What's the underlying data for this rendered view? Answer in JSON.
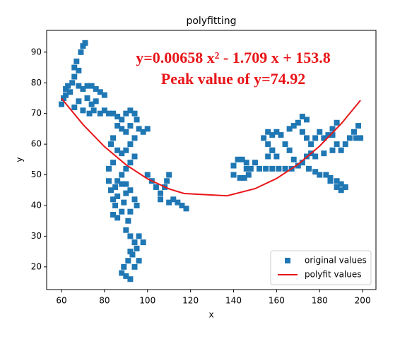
{
  "chart_data": {
    "type": "scatter",
    "title": "polyfitting",
    "x_label": "x",
    "y_label": "y",
    "annotations": [
      "y=0.00658 x² - 1.709 x + 153.8",
      "Peak value of y=74.92"
    ],
    "xlim": [
      53.1,
      206.2
    ],
    "ylim": [
      12.6,
      97.1
    ],
    "xticks": [
      60,
      80,
      100,
      120,
      140,
      160,
      180,
      200
    ],
    "yticks": [
      20,
      30,
      40,
      50,
      60,
      70,
      80,
      90
    ],
    "legend": "lower right",
    "series": [
      {
        "name": "original values",
        "color": "#1f77b4",
        "style": "square",
        "x": [
          60,
          61,
          62,
          62,
          63,
          64,
          65,
          66,
          66,
          67,
          68,
          69,
          70,
          71,
          68,
          70,
          72,
          74,
          76,
          78,
          80,
          76,
          74,
          72,
          68,
          66,
          70,
          73,
          75,
          78,
          80,
          82,
          84,
          86,
          88,
          90,
          92,
          94,
          95,
          92,
          90,
          88,
          86,
          84,
          83,
          86,
          88,
          90,
          92,
          94,
          96,
          98,
          100,
          94,
          92,
          90,
          88,
          86,
          85,
          83,
          84,
          85,
          84,
          86,
          88,
          89,
          90,
          90,
          88,
          86,
          82,
          82,
          84,
          92,
          94,
          95,
          92,
          91,
          90,
          92,
          94,
          96,
          95,
          93,
          91,
          89,
          88,
          90,
          92,
          94,
          96,
          98,
          92,
          100,
          102,
          104,
          106,
          108,
          110,
          109,
          112,
          114,
          116,
          118,
          110,
          106,
          140,
          140,
          142,
          144,
          146,
          148,
          147,
          145,
          143,
          146,
          150,
          152,
          155,
          158,
          161,
          164,
          167,
          170,
          172,
          175,
          178,
          180,
          183,
          185,
          188,
          190,
          192,
          190,
          188,
          185,
          168,
          166,
          164,
          162,
          160,
          158,
          156,
          154,
          156,
          158,
          160,
          166,
          168,
          170,
          172,
          174,
          172,
          174,
          176,
          178,
          180,
          182,
          184,
          186,
          188,
          186,
          188,
          190,
          192,
          194,
          196,
          198,
          197,
          199,
          174,
          176,
          178,
          186,
          182,
          158,
          156
        ],
        "values": [
          73,
          75,
          76,
          78,
          79,
          77,
          80,
          82,
          85,
          87,
          84,
          90,
          92,
          93,
          79,
          78,
          79,
          79,
          78,
          77,
          76,
          74,
          73,
          75,
          74,
          72,
          71,
          70,
          71,
          70,
          71,
          70,
          70,
          69,
          68,
          70,
          71,
          70,
          68,
          66,
          64,
          65,
          66,
          62,
          60,
          58,
          57,
          58,
          60,
          62,
          65,
          64,
          65,
          56,
          54,
          52,
          50,
          48,
          46,
          45,
          42,
          40,
          37,
          36,
          38,
          41,
          44,
          47,
          47,
          43,
          48,
          52,
          54,
          45,
          42,
          40,
          38,
          35,
          32,
          30,
          28,
          30,
          26,
          24,
          22,
          20,
          18,
          17,
          16,
          20,
          22,
          28,
          25,
          50,
          48,
          46,
          44,
          46,
          50,
          48,
          42,
          41,
          40,
          39,
          41,
          42,
          50,
          53,
          55,
          55,
          54,
          52,
          50,
          49,
          49,
          52,
          54,
          52,
          52,
          52,
          52,
          52,
          52,
          53,
          54,
          52,
          51,
          50,
          50,
          48,
          46,
          45,
          46,
          47,
          48,
          49,
          55,
          58,
          60,
          63,
          64,
          63,
          64,
          62,
          60,
          58,
          56,
          65,
          66,
          67,
          69,
          68,
          64,
          62,
          60,
          62,
          64,
          62,
          63,
          65,
          67,
          63,
          60,
          58,
          60,
          62,
          64,
          66,
          62,
          62,
          56,
          57,
          56,
          58,
          57,
          58,
          56
        ]
      },
      {
        "name": "polyfit values",
        "color": "#e8161a",
        "style": "line",
        "x": [
          60,
          70,
          80,
          90,
          100,
          110,
          117,
          137,
          150,
          160,
          170,
          180,
          190,
          199
        ],
        "values": [
          74.95,
          66.41,
          59.19,
          53.29,
          48.7,
          45.43,
          43.92,
          43.17,
          45.5,
          48.81,
          53.43,
          59.37,
          66.63,
          74.29
        ]
      }
    ]
  }
}
